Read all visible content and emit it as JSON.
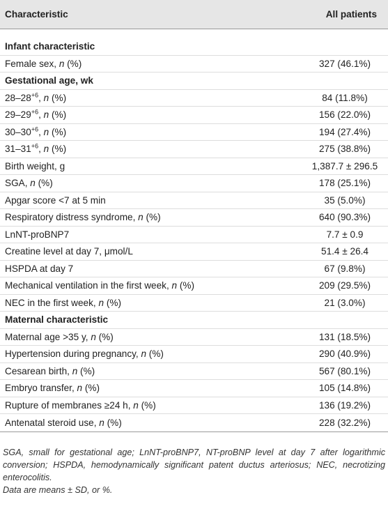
{
  "table": {
    "header": [
      "Characteristic",
      "All patients"
    ],
    "rows": [
      {
        "section": "Infant characteristic"
      },
      {
        "label": [
          {
            "text": "Female sex, "
          },
          {
            "text": "n",
            "style": "italic"
          },
          {
            "text": " (%)"
          }
        ],
        "value": "327 (46.1%)"
      },
      {
        "section": "Gestational age, wk"
      },
      {
        "label": [
          {
            "text": "28–28"
          },
          {
            "text": "+6",
            "style": "sup"
          },
          {
            "text": ", "
          },
          {
            "text": "n",
            "style": "italic"
          },
          {
            "text": " (%)"
          }
        ],
        "value": "84 (11.8%)"
      },
      {
        "label": [
          {
            "text": "29–29"
          },
          {
            "text": "+6",
            "style": "sup"
          },
          {
            "text": ", "
          },
          {
            "text": "n",
            "style": "italic"
          },
          {
            "text": " (%)"
          }
        ],
        "value": "156 (22.0%)"
      },
      {
        "label": [
          {
            "text": "30–30"
          },
          {
            "text": "+6",
            "style": "sup"
          },
          {
            "text": ", "
          },
          {
            "text": "n",
            "style": "italic"
          },
          {
            "text": " (%)"
          }
        ],
        "value": "194 (27.4%)"
      },
      {
        "label": [
          {
            "text": "31–31"
          },
          {
            "text": "+6",
            "style": "sup"
          },
          {
            "text": ", "
          },
          {
            "text": "n",
            "style": "italic"
          },
          {
            "text": " (%)"
          }
        ],
        "value": "275 (38.8%)"
      },
      {
        "label": [
          {
            "text": "Birth weight, g"
          }
        ],
        "value": "1,387.7 ± 296.5"
      },
      {
        "label": [
          {
            "text": "SGA, "
          },
          {
            "text": "n",
            "style": "italic"
          },
          {
            "text": " (%)"
          }
        ],
        "value": "178 (25.1%)"
      },
      {
        "label": [
          {
            "text": "Apgar score <7 at 5 min"
          }
        ],
        "value": "35 (5.0%)"
      },
      {
        "label": [
          {
            "text": "Respiratory distress syndrome, "
          },
          {
            "text": "n",
            "style": "italic"
          },
          {
            "text": " (%)"
          }
        ],
        "value": "640 (90.3%)"
      },
      {
        "label": [
          {
            "text": "LnNT-proBNP7"
          }
        ],
        "value": "7.7 ± 0.9"
      },
      {
        "label": [
          {
            "text": "Creatine level at day 7, μmol/L"
          }
        ],
        "value": "51.4 ± 26.4"
      },
      {
        "label": [
          {
            "text": "HSPDA at day 7"
          }
        ],
        "value": "67 (9.8%)"
      },
      {
        "label": [
          {
            "text": "Mechanical ventilation in the first week, "
          },
          {
            "text": "n",
            "style": "italic"
          },
          {
            "text": " (%)"
          }
        ],
        "value": "209 (29.5%)"
      },
      {
        "label": [
          {
            "text": "NEC in the first week, "
          },
          {
            "text": "n",
            "style": "italic"
          },
          {
            "text": " (%)"
          }
        ],
        "value": "21 (3.0%)"
      },
      {
        "section": "Maternal characteristic"
      },
      {
        "label": [
          {
            "text": "Maternal age >35 y, "
          },
          {
            "text": "n",
            "style": "italic"
          },
          {
            "text": " (%)"
          }
        ],
        "value": "131 (18.5%)"
      },
      {
        "label": [
          {
            "text": "Hypertension during pregnancy, "
          },
          {
            "text": "n",
            "style": "italic"
          },
          {
            "text": " (%)"
          }
        ],
        "value": "290 (40.9%)"
      },
      {
        "label": [
          {
            "text": "Cesarean birth, "
          },
          {
            "text": "n",
            "style": "italic"
          },
          {
            "text": " (%)"
          }
        ],
        "value": "567 (80.1%)"
      },
      {
        "label": [
          {
            "text": "Embryo transfer, "
          },
          {
            "text": "n",
            "style": "italic"
          },
          {
            "text": " (%)"
          }
        ],
        "value": "105 (14.8%)"
      },
      {
        "label": [
          {
            "text": "Rupture of membranes ≥24 h, "
          },
          {
            "text": "n",
            "style": "italic"
          },
          {
            "text": " (%)"
          }
        ],
        "value": "136 (19.2%)"
      },
      {
        "label": [
          {
            "text": "Antenatal steroid use, "
          },
          {
            "text": "n",
            "style": "italic"
          },
          {
            "text": " (%)"
          }
        ],
        "value": "228 (32.2%)"
      }
    ]
  },
  "footnotes": [
    "SGA, small for gestational age; LnNT-proBNP7, NT-proBNP level at day 7 after logarithmic conversion; HSPDA, hemodynamically significant patent ductus arteriosus; NEC, necrotizing enterocolitis.",
    "Data are means ± SD, or %."
  ]
}
